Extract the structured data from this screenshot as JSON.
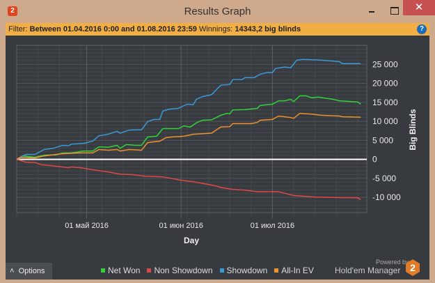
{
  "window": {
    "title": "Results Graph",
    "app_icon": "2"
  },
  "filter": {
    "label": "Filter:",
    "value": "Between 01.04.2016 0:00 and 01.08.2016 23:59",
    "winnings_label": "Winnings:",
    "winnings_value": "14343,2 big blinds"
  },
  "options_label": "Options",
  "branding": {
    "powered_by": "Powered by",
    "name": "Hold'em Manager",
    "logo": "2"
  },
  "chart_data": {
    "type": "line",
    "xlabel": "Day",
    "ylabel": "Big Blinds",
    "x_ticks": [
      {
        "date": "2016-05-01",
        "label": "01 май 2016"
      },
      {
        "date": "2016-06-01",
        "label": "01 июн 2016"
      },
      {
        "date": "2016-07-01",
        "label": "01 июл 2016"
      }
    ],
    "y_ticks": [
      25000,
      20000,
      15000,
      10000,
      5000,
      0,
      -5000,
      -10000
    ],
    "y_tick_labels": [
      "25 000",
      "20 000",
      "15 000",
      "10 000",
      "5 000",
      "0",
      "-5 000",
      "-10 000"
    ],
    "ylim": [
      -14000,
      30000
    ],
    "xlim": [
      "2016-04-08",
      "2016-07-31"
    ],
    "grid": true,
    "legend": "bottom",
    "series": [
      {
        "name": "Net Won",
        "color": "#2fd43a",
        "points": [
          [
            "2016-04-08",
            0
          ],
          [
            "2016-04-10",
            900
          ],
          [
            "2016-04-14",
            550
          ],
          [
            "2016-04-17",
            1100
          ],
          [
            "2016-04-21",
            1200
          ],
          [
            "2016-04-23",
            1650
          ],
          [
            "2016-04-26",
            1700
          ],
          [
            "2016-04-30",
            2200
          ],
          [
            "2016-05-03",
            2200
          ],
          [
            "2016-05-05",
            3300
          ],
          [
            "2016-05-08",
            3200
          ],
          [
            "2016-05-11",
            3700
          ],
          [
            "2016-05-12",
            2900
          ],
          [
            "2016-05-14",
            3900
          ],
          [
            "2016-05-17",
            3700
          ],
          [
            "2016-05-19",
            3700
          ],
          [
            "2016-05-21",
            5900
          ],
          [
            "2016-05-24",
            6100
          ],
          [
            "2016-05-26",
            8100
          ],
          [
            "2016-05-31",
            8100
          ],
          [
            "2016-06-02",
            8800
          ],
          [
            "2016-06-04",
            8500
          ],
          [
            "2016-06-06",
            9600
          ],
          [
            "2016-06-08",
            10300
          ],
          [
            "2016-06-11",
            10400
          ],
          [
            "2016-06-14",
            11600
          ],
          [
            "2016-06-16",
            12100
          ],
          [
            "2016-06-17",
            12000
          ],
          [
            "2016-06-18",
            13000
          ],
          [
            "2016-06-22",
            13100
          ],
          [
            "2016-06-26",
            13400
          ],
          [
            "2016-06-27",
            14200
          ],
          [
            "2016-07-01",
            14500
          ],
          [
            "2016-07-03",
            15400
          ],
          [
            "2016-07-05",
            15400
          ],
          [
            "2016-07-07",
            15800
          ],
          [
            "2016-07-08",
            15200
          ],
          [
            "2016-07-10",
            16700
          ],
          [
            "2016-07-12",
            16700
          ],
          [
            "2016-07-14",
            16200
          ],
          [
            "2016-07-16",
            16400
          ],
          [
            "2016-07-21",
            15800
          ],
          [
            "2016-07-23",
            15400
          ],
          [
            "2016-07-29",
            15100
          ],
          [
            "2016-07-30",
            14500
          ]
        ]
      },
      {
        "name": "Non Showdown",
        "color": "#e04848",
        "points": [
          [
            "2016-04-08",
            0
          ],
          [
            "2016-04-11",
            -700
          ],
          [
            "2016-04-14",
            -800
          ],
          [
            "2016-04-16",
            -1400
          ],
          [
            "2016-04-19",
            -1600
          ],
          [
            "2016-04-25",
            -2200
          ],
          [
            "2016-04-26",
            -2000
          ],
          [
            "2016-04-29",
            -2200
          ],
          [
            "2016-05-02",
            -2600
          ],
          [
            "2016-05-06",
            -3100
          ],
          [
            "2016-05-08",
            -3300
          ],
          [
            "2016-05-12",
            -3900
          ],
          [
            "2016-05-16",
            -4000
          ],
          [
            "2016-05-20",
            -4400
          ],
          [
            "2016-05-26",
            -4600
          ],
          [
            "2016-06-01",
            -5500
          ],
          [
            "2016-06-05",
            -5900
          ],
          [
            "2016-06-10",
            -6600
          ],
          [
            "2016-06-13",
            -7100
          ],
          [
            "2016-06-14",
            -7400
          ],
          [
            "2016-06-18",
            -7900
          ],
          [
            "2016-06-22",
            -8100
          ],
          [
            "2016-06-26",
            -8500
          ],
          [
            "2016-07-03",
            -8500
          ],
          [
            "2016-07-08",
            -9500
          ],
          [
            "2016-07-15",
            -9900
          ],
          [
            "2016-07-23",
            -10050
          ],
          [
            "2016-07-29",
            -10100
          ],
          [
            "2016-07-30",
            -10600
          ]
        ]
      },
      {
        "name": "Showdown",
        "color": "#3a9ad9",
        "points": [
          [
            "2016-04-08",
            0
          ],
          [
            "2016-04-11",
            1300
          ],
          [
            "2016-04-14",
            1300
          ],
          [
            "2016-04-17",
            2600
          ],
          [
            "2016-04-20",
            2900
          ],
          [
            "2016-04-23",
            3700
          ],
          [
            "2016-04-25",
            3600
          ],
          [
            "2016-04-26",
            4000
          ],
          [
            "2016-04-30",
            4200
          ],
          [
            "2016-05-03",
            4800
          ],
          [
            "2016-05-05",
            6200
          ],
          [
            "2016-05-08",
            6600
          ],
          [
            "2016-05-11",
            7400
          ],
          [
            "2016-05-12",
            6900
          ],
          [
            "2016-05-15",
            7700
          ],
          [
            "2016-05-19",
            7800
          ],
          [
            "2016-05-21",
            9900
          ],
          [
            "2016-05-23",
            10500
          ],
          [
            "2016-05-25",
            10500
          ],
          [
            "2016-05-26",
            12700
          ],
          [
            "2016-05-28",
            13200
          ],
          [
            "2016-05-31",
            13400
          ],
          [
            "2016-06-03",
            14500
          ],
          [
            "2016-06-05",
            14400
          ],
          [
            "2016-06-06",
            15800
          ],
          [
            "2016-06-08",
            16500
          ],
          [
            "2016-06-11",
            17000
          ],
          [
            "2016-06-14",
            19500
          ],
          [
            "2016-06-17",
            19700
          ],
          [
            "2016-06-18",
            21000
          ],
          [
            "2016-06-21",
            21000
          ],
          [
            "2016-06-22",
            21500
          ],
          [
            "2016-06-25",
            21500
          ],
          [
            "2016-06-27",
            22400
          ],
          [
            "2016-06-29",
            22800
          ],
          [
            "2016-07-01",
            22800
          ],
          [
            "2016-07-02",
            23900
          ],
          [
            "2016-07-05",
            24300
          ],
          [
            "2016-07-07",
            24100
          ],
          [
            "2016-07-09",
            26100
          ],
          [
            "2016-07-11",
            26300
          ],
          [
            "2016-07-17",
            26100
          ],
          [
            "2016-07-23",
            25700
          ],
          [
            "2016-07-24",
            25200
          ],
          [
            "2016-07-30",
            25200
          ]
        ]
      },
      {
        "name": "All-In EV",
        "color": "#f0922e",
        "points": [
          [
            "2016-04-08",
            0
          ],
          [
            "2016-04-09",
            500
          ],
          [
            "2016-04-14",
            400
          ],
          [
            "2016-04-17",
            900
          ],
          [
            "2016-04-21",
            1300
          ],
          [
            "2016-04-23",
            1500
          ],
          [
            "2016-04-29",
            1700
          ],
          [
            "2016-05-03",
            1700
          ],
          [
            "2016-05-05",
            2600
          ],
          [
            "2016-05-08",
            2400
          ],
          [
            "2016-05-11",
            2600
          ],
          [
            "2016-05-12",
            2200
          ],
          [
            "2016-05-15",
            2600
          ],
          [
            "2016-05-19",
            2400
          ],
          [
            "2016-05-21",
            4400
          ],
          [
            "2016-05-23",
            4600
          ],
          [
            "2016-05-25",
            4800
          ],
          [
            "2016-05-27",
            5700
          ],
          [
            "2016-05-29",
            5900
          ],
          [
            "2016-06-02",
            6100
          ],
          [
            "2016-06-05",
            6600
          ],
          [
            "2016-06-09",
            6800
          ],
          [
            "2016-06-11",
            6900
          ],
          [
            "2016-06-14",
            8500
          ],
          [
            "2016-06-17",
            8600
          ],
          [
            "2016-06-18",
            9400
          ],
          [
            "2016-06-24",
            9400
          ],
          [
            "2016-06-26",
            9700
          ],
          [
            "2016-06-27",
            10300
          ],
          [
            "2016-07-01",
            10500
          ],
          [
            "2016-07-03",
            11400
          ],
          [
            "2016-07-07",
            11000
          ],
          [
            "2016-07-08",
            10800
          ],
          [
            "2016-07-10",
            12100
          ],
          [
            "2016-07-14",
            11900
          ],
          [
            "2016-07-17",
            11600
          ],
          [
            "2016-07-23",
            11400
          ],
          [
            "2016-07-24",
            11200
          ],
          [
            "2016-07-30",
            11100
          ]
        ]
      }
    ]
  }
}
